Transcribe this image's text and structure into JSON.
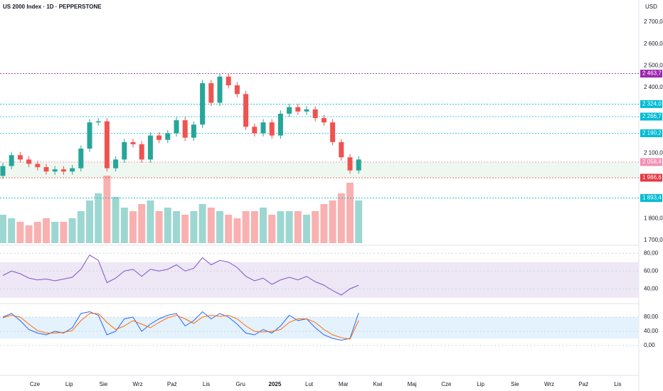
{
  "header": {
    "symbol": "US 2000 Index · 1D · PEPPERSTONE",
    "currency": "USD"
  },
  "chart_data": [
    {
      "type": "candlestick",
      "ylim": [
        1677,
        2788
      ],
      "yticks": [
        {
          "value": 2700,
          "label": "2 700,0"
        },
        {
          "value": 2600,
          "label": "2 600,0"
        },
        {
          "value": 2500,
          "label": "2 500,0"
        },
        {
          "value": 2400,
          "label": "2 400,0"
        },
        {
          "value": 2100,
          "label": "2 100,0"
        },
        {
          "value": 1800,
          "label": "1 800,0"
        },
        {
          "value": 1700,
          "label": "1 700,0"
        }
      ],
      "levels": [
        {
          "value": 2463.7,
          "label": "2 463,7",
          "color": "#9c27b0"
        },
        {
          "value": 2324.0,
          "label": "2 324,0",
          "color": "#00bcd4"
        },
        {
          "value": 2266.7,
          "label": "2 266,7",
          "color": "#00bcd4"
        },
        {
          "value": 2190.2,
          "label": "2 190,2",
          "color": "#00bcd4"
        },
        {
          "value": 2058.4,
          "label": "2 058,4",
          "color": "#f48fb1"
        },
        {
          "value": 1986.6,
          "label": "1 986,6",
          "color": "#e53945"
        },
        {
          "value": 1893.4,
          "label": "1 893,4",
          "color": "#00bcd4"
        }
      ],
      "up_color": "#26a69a",
      "down_color": "#ef5350",
      "open": [
        1995,
        2040,
        2090,
        2070,
        2050,
        2035,
        2015,
        2025,
        2015,
        2030,
        2120,
        2240,
        2245,
        2030,
        2070,
        2150,
        2140,
        2070,
        2180,
        2160,
        2190,
        2250,
        2170,
        2230,
        2420,
        2330,
        2450,
        2410,
        2370,
        2220,
        2190,
        2240,
        2180,
        2280,
        2310,
        2290,
        2300,
        2260,
        2240,
        2150,
        2080,
        2020
      ],
      "high": [
        2055,
        2105,
        2105,
        2085,
        2065,
        2050,
        2040,
        2040,
        2045,
        2135,
        2255,
        2260,
        2260,
        2085,
        2165,
        2165,
        2155,
        2195,
        2195,
        2205,
        2265,
        2265,
        2245,
        2435,
        2435,
        2465,
        2465,
        2425,
        2385,
        2235,
        2255,
        2255,
        2295,
        2325,
        2325,
        2315,
        2315,
        2275,
        2255,
        2165,
        2095,
        2085
      ],
      "low": [
        1980,
        2025,
        2055,
        2035,
        2020,
        2000,
        2000,
        2000,
        2000,
        2015,
        2105,
        2225,
        2015,
        2015,
        2055,
        2125,
        2055,
        2055,
        2145,
        2145,
        2175,
        2155,
        2155,
        2215,
        2315,
        2315,
        2395,
        2355,
        2205,
        2175,
        2175,
        2165,
        2165,
        2265,
        2275,
        2275,
        2245,
        2225,
        2135,
        2065,
        2005,
        2005
      ],
      "close": [
        2040,
        2090,
        2070,
        2050,
        2035,
        2015,
        2025,
        2015,
        2030,
        2120,
        2240,
        2245,
        2030,
        2070,
        2150,
        2140,
        2070,
        2180,
        2160,
        2190,
        2250,
        2170,
        2230,
        2420,
        2330,
        2450,
        2410,
        2370,
        2220,
        2190,
        2240,
        2180,
        2280,
        2310,
        2290,
        2300,
        2260,
        2240,
        2150,
        2080,
        2020,
        2070
      ],
      "volume": [
        40,
        35,
        30,
        25,
        30,
        35,
        30,
        30,
        35,
        45,
        60,
        70,
        95,
        65,
        50,
        45,
        55,
        60,
        45,
        50,
        45,
        40,
        45,
        55,
        50,
        45,
        40,
        35,
        45,
        45,
        50,
        40,
        45,
        45,
        45,
        40,
        45,
        55,
        60,
        70,
        85,
        60
      ]
    },
    {
      "type": "line",
      "ylim": [
        25,
        89
      ],
      "yticks": [
        {
          "value": 80,
          "label": "80,00"
        },
        {
          "value": 60,
          "label": "60,00"
        },
        {
          "value": 40,
          "label": "40,00"
        }
      ],
      "band": [
        30,
        70
      ],
      "band_color": "#ede7f6",
      "series": [
        {
          "color": "#7e57c2",
          "values": [
            55,
            60,
            57,
            52,
            50,
            51,
            49,
            51,
            53,
            62,
            78,
            72,
            47,
            52,
            60,
            62,
            54,
            62,
            60,
            62,
            67,
            60,
            63,
            75,
            67,
            72,
            70,
            64,
            54,
            49,
            52,
            45,
            50,
            53,
            50,
            54,
            48,
            44,
            38,
            33,
            40,
            44
          ]
        }
      ]
    },
    {
      "type": "line",
      "ylim": [
        -28,
        112
      ],
      "yticks": [
        {
          "value": 80,
          "label": "80,00"
        },
        {
          "value": 40,
          "label": "40,00"
        },
        {
          "value": 0,
          "label": "0,00"
        }
      ],
      "band": [
        20,
        80
      ],
      "band_color": "#e3f2fd",
      "series": [
        {
          "color": "#2962ff",
          "values": [
            80,
            90,
            70,
            45,
            35,
            30,
            40,
            35,
            50,
            90,
            95,
            85,
            30,
            40,
            75,
            80,
            40,
            60,
            75,
            85,
            90,
            55,
            70,
            95,
            75,
            90,
            80,
            60,
            35,
            30,
            45,
            35,
            55,
            85,
            70,
            75,
            50,
            30,
            20,
            15,
            20,
            92
          ]
        },
        {
          "color": "#ff6d00",
          "values": [
            78,
            85,
            80,
            60,
            42,
            35,
            35,
            37,
            42,
            70,
            90,
            90,
            65,
            45,
            55,
            70,
            60,
            50,
            65,
            78,
            85,
            75,
            62,
            80,
            85,
            82,
            85,
            75,
            55,
            40,
            38,
            40,
            45,
            65,
            75,
            75,
            65,
            45,
            30,
            22,
            18,
            70
          ]
        }
      ]
    }
  ],
  "x_labels": [
    "Cze",
    "Lip",
    "Sie",
    "Wrz",
    "Paź",
    "Lis",
    "Gru",
    "2025",
    "Lut",
    "Mar",
    "Kwi",
    "Maj",
    "Cze",
    "Lip",
    "Sie",
    "Wrz",
    "Paź",
    "Lis"
  ]
}
